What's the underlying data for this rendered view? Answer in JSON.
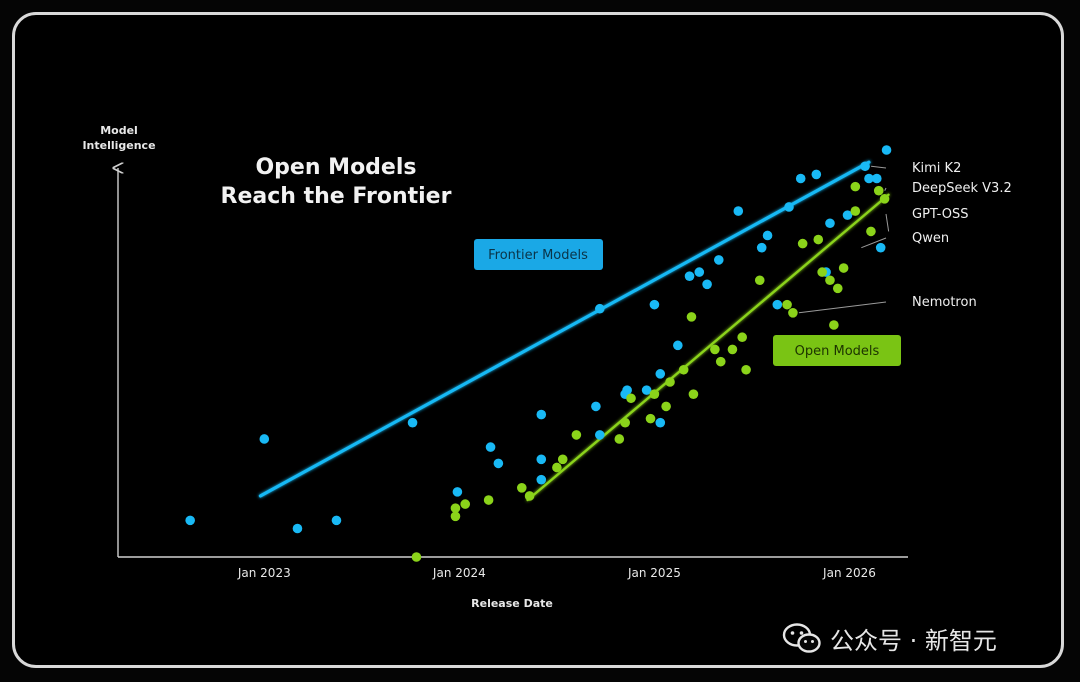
{
  "title_lines": [
    "Open Models",
    "Reach the Frontier"
  ],
  "watermark": "公众号 · 新智元",
  "colors": {
    "frontier": "#19b9f5",
    "open": "#8bd31a",
    "background": "#000000"
  },
  "chart_data": {
    "type": "scatter",
    "title": "Open Models Reach the Frontier",
    "ylabel_lines": [
      "Model",
      "Intelligence"
    ],
    "xlabel": "Release Date",
    "x_ticks": [
      {
        "label": "Jan 2023",
        "value": 2023.0
      },
      {
        "label": "Jan 2024",
        "value": 2024.0
      },
      {
        "label": "Jan 2025",
        "value": 2025.0
      },
      {
        "label": "Jan 2026",
        "value": 2026.0
      }
    ],
    "xlim": [
      2022.25,
      2026.3
    ],
    "ylim": [
      0,
      100
    ],
    "series": [
      {
        "name": "Frontier Models",
        "color": "#19b9f5",
        "points": [
          [
            2022.62,
            9
          ],
          [
            2023.0,
            29
          ],
          [
            2023.17,
            7
          ],
          [
            2023.37,
            9
          ],
          [
            2023.76,
            33
          ],
          [
            2023.99,
            16
          ],
          [
            2024.16,
            27
          ],
          [
            2024.2,
            23
          ],
          [
            2024.42,
            35
          ],
          [
            2024.42,
            19
          ],
          [
            2024.42,
            24
          ],
          [
            2024.7,
            37
          ],
          [
            2024.72,
            30
          ],
          [
            2024.85,
            40
          ],
          [
            2024.86,
            41
          ],
          [
            2024.96,
            41
          ],
          [
            2024.72,
            61
          ],
          [
            2025.0,
            62
          ],
          [
            2025.03,
            45
          ],
          [
            2025.03,
            33
          ],
          [
            2025.12,
            52
          ],
          [
            2025.18,
            69
          ],
          [
            2025.23,
            70
          ],
          [
            2025.27,
            67
          ],
          [
            2025.33,
            73
          ],
          [
            2025.43,
            85
          ],
          [
            2025.55,
            76
          ],
          [
            2025.58,
            79
          ],
          [
            2025.63,
            62
          ],
          [
            2025.69,
            86
          ],
          [
            2025.75,
            93
          ],
          [
            2025.83,
            94
          ],
          [
            2025.88,
            70
          ],
          [
            2025.9,
            82
          ],
          [
            2025.99,
            84
          ],
          [
            2026.08,
            96
          ],
          [
            2026.1,
            93
          ],
          [
            2026.14,
            93
          ],
          [
            2026.16,
            76
          ],
          [
            2026.19,
            100
          ]
        ],
        "trend": [
          [
            2022.98,
            15
          ],
          [
            2026.1,
            97
          ]
        ],
        "badge": "Frontier Models"
      },
      {
        "name": "Open Models",
        "color": "#8bd31a",
        "points": [
          [
            2023.78,
            0
          ],
          [
            2023.98,
            10
          ],
          [
            2023.98,
            12
          ],
          [
            2024.03,
            13
          ],
          [
            2024.15,
            14
          ],
          [
            2024.32,
            17
          ],
          [
            2024.36,
            15
          ],
          [
            2024.5,
            22
          ],
          [
            2024.53,
            24
          ],
          [
            2024.6,
            30
          ],
          [
            2024.82,
            29
          ],
          [
            2024.85,
            33
          ],
          [
            2024.88,
            39
          ],
          [
            2024.98,
            34
          ],
          [
            2025.0,
            40
          ],
          [
            2025.06,
            37
          ],
          [
            2025.08,
            43
          ],
          [
            2025.15,
            46
          ],
          [
            2025.19,
            59
          ],
          [
            2025.2,
            40
          ],
          [
            2025.31,
            51
          ],
          [
            2025.34,
            48
          ],
          [
            2025.4,
            51
          ],
          [
            2025.45,
            54
          ],
          [
            2025.47,
            46
          ],
          [
            2025.54,
            68
          ],
          [
            2025.68,
            62
          ],
          [
            2025.71,
            60
          ],
          [
            2025.76,
            77
          ],
          [
            2025.84,
            78
          ],
          [
            2025.86,
            70
          ],
          [
            2025.9,
            68
          ],
          [
            2025.94,
            66
          ],
          [
            2025.97,
            71
          ],
          [
            2025.92,
            57
          ],
          [
            2026.03,
            85
          ],
          [
            2026.03,
            91
          ],
          [
            2026.11,
            80
          ],
          [
            2026.15,
            90
          ],
          [
            2026.18,
            88
          ]
        ],
        "trend": [
          [
            2024.35,
            14
          ],
          [
            2026.2,
            89
          ]
        ],
        "badge": "Open Models"
      }
    ],
    "annotations": [
      {
        "label": "Kimi K2",
        "point": [
          2026.08,
          96
        ]
      },
      {
        "label": "DeepSeek V3.2",
        "point": [
          2026.15,
          90
        ]
      },
      {
        "label": "GPT-OSS",
        "point": [
          2026.17,
          80
        ]
      },
      {
        "label": "Qwen",
        "point": [
          2026.03,
          76
        ]
      },
      {
        "label": "Nemotron",
        "point": [
          2025.71,
          60
        ]
      }
    ]
  }
}
